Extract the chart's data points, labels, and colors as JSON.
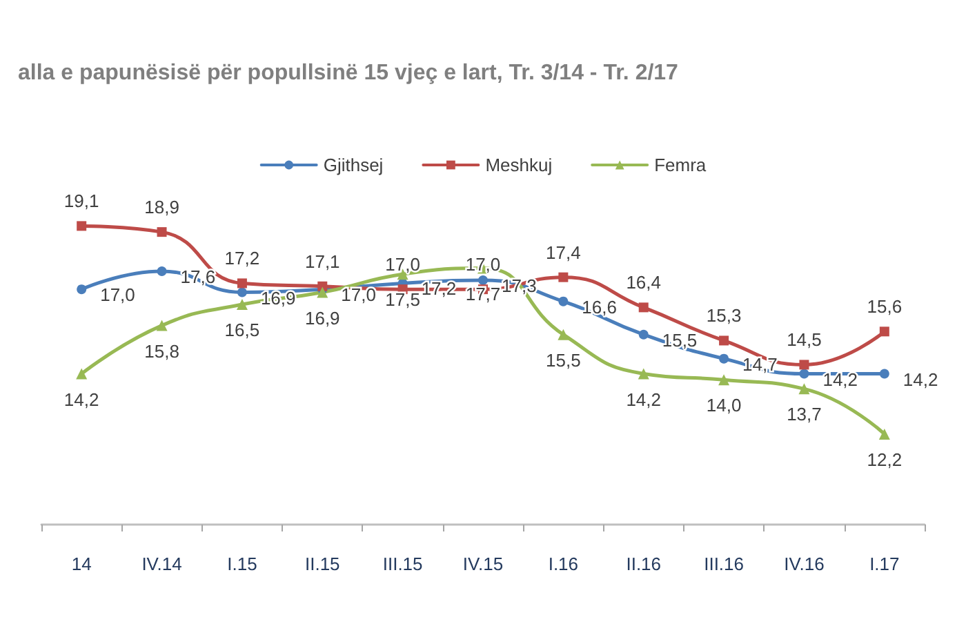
{
  "chart_data": {
    "type": "line",
    "title": "alla e papunësisë për popullsinë 15 vjeç e lart, Tr. 3/14 - Tr. 2/17",
    "categories": [
      "14",
      "IV.14",
      "I.15",
      "II.15",
      "III.15",
      "IV.15",
      "I.16",
      "II.16",
      "III.16",
      "IV.16",
      "I.17"
    ],
    "series": [
      {
        "name": "Gjithsej",
        "color": "#4a7ebb",
        "marker": "circle",
        "values": [
          17.0,
          17.6,
          16.9,
          17.0,
          17.2,
          17.3,
          16.6,
          15.5,
          14.7,
          14.2,
          14.2
        ],
        "value_labels": [
          "17,0",
          "17,6",
          "16,9",
          "17,0",
          "17,2",
          "17,3",
          "16,6",
          "15,5",
          "14,7",
          "14,2",
          "14,2"
        ]
      },
      {
        "name": "Meshkuj",
        "color": "#be4b48",
        "marker": "square",
        "values": [
          19.1,
          18.9,
          17.2,
          17.1,
          17.0,
          17.0,
          17.4,
          16.4,
          15.3,
          14.5,
          15.6
        ],
        "value_labels": [
          "19,1",
          "18,9",
          "17,2",
          "17,1",
          "17,0",
          "17,0",
          "17,4",
          "16,4",
          "15,3",
          "14,5",
          "15,6"
        ]
      },
      {
        "name": "Femra",
        "color": "#98b954",
        "marker": "triangle",
        "values": [
          14.2,
          15.8,
          16.5,
          16.9,
          17.5,
          17.7,
          15.5,
          14.2,
          14.0,
          13.7,
          12.2
        ],
        "value_labels": [
          "14,2",
          "15,8",
          "16,5",
          "16,9",
          "17,5",
          "17,7",
          "15,5",
          "14,2",
          "14,0",
          "13,7",
          "12,2"
        ]
      }
    ],
    "legend": "top",
    "grid": false
  }
}
